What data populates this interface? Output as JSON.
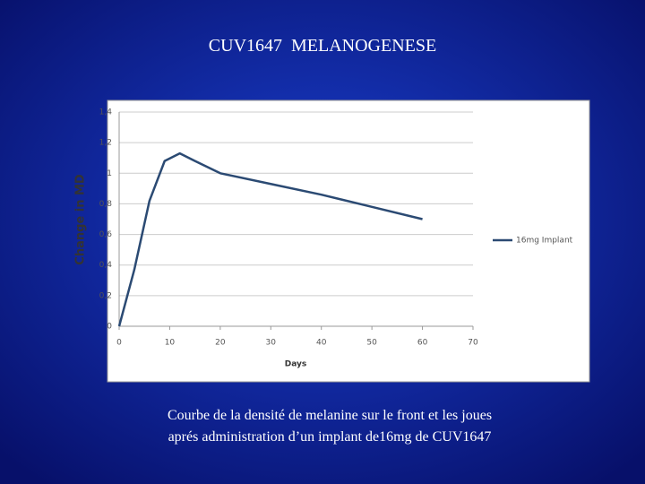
{
  "chart_data": {
    "type": "line",
    "title": "CUV1647  MELANOGENESE",
    "caption": [
      "Courbe de la densité de melanine sur le front et les joues",
      "aprés administration d’un implant de16mg de CUV1647"
    ],
    "x_label": "Days",
    "y_label": "Change in MD",
    "x": [
      0,
      3,
      6,
      9,
      12,
      15,
      20,
      30,
      40,
      50,
      60
    ],
    "series": [
      {
        "name": "16mg Implant",
        "color": "#2b4a73",
        "values": [
          0,
          0.37,
          0.82,
          1.08,
          1.13,
          1.08,
          1.0,
          0.93,
          0.86,
          0.78,
          0.7
        ]
      }
    ],
    "xlim": [
      0,
      70
    ],
    "xticks": [
      0,
      10,
      20,
      30,
      40,
      50,
      60,
      70
    ],
    "ylim": [
      0,
      1.4
    ],
    "yticks": [
      0,
      {
        "value": 0.2,
        "label": "0,2"
      },
      {
        "value": 0.4,
        "label": "0,4"
      },
      {
        "value": 0.6,
        "label": "0,6"
      },
      {
        "value": 0.8,
        "label": "0,8"
      },
      1,
      {
        "value": 1.2,
        "label": "1,2"
      },
      {
        "value": 1.4,
        "label": "1,4"
      }
    ],
    "grid": true,
    "legend": "right"
  }
}
